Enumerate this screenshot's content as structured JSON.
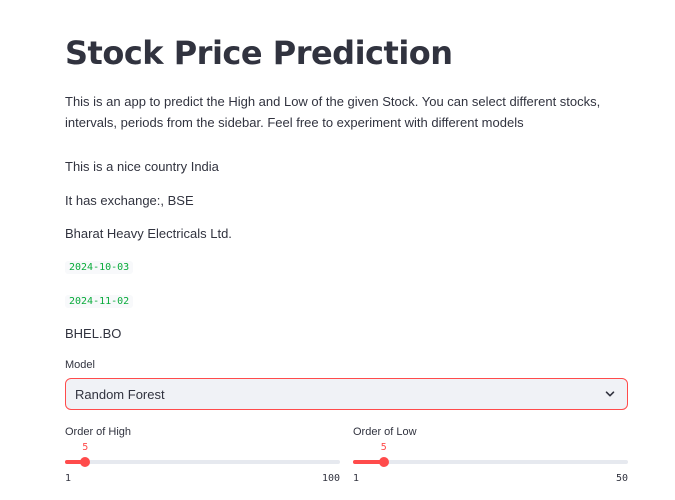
{
  "page": {
    "title": "Stock Price Prediction",
    "description": "This is an app to predict the High and Low of the given Stock. You can select different stocks, intervals, periods from the sidebar. Feel free to experiment with different models"
  },
  "info": {
    "country": "This is a nice country India",
    "exchange": "It has exchange:, BSE",
    "company": "Bharat Heavy Electricals Ltd.",
    "start_date": "2024-10-03",
    "end_date": "2024-11-02",
    "ticker": "BHEL.BO"
  },
  "model_select": {
    "label": "Model",
    "value": "Random Forest"
  },
  "sliders": {
    "high": {
      "label": "Order of High",
      "value": 5,
      "min": 1,
      "max": 100
    },
    "low": {
      "label": "Order of Low",
      "value": 5,
      "min": 1,
      "max": 50
    }
  },
  "colors": {
    "accent": "#ff4b4b",
    "code_text": "#09ab3b",
    "text": "#31333f",
    "select_bg": "#f0f2f6"
  }
}
